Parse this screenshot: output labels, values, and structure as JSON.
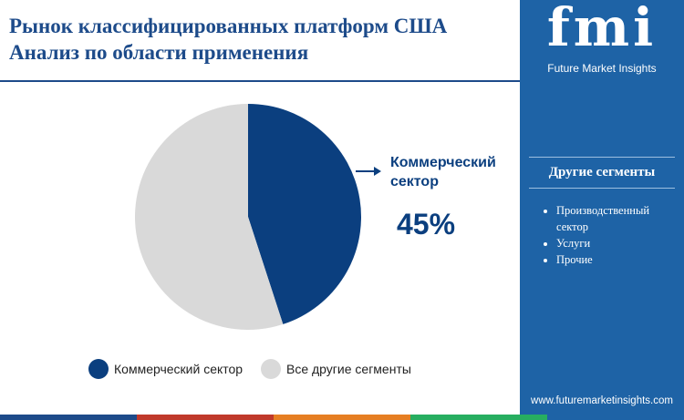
{
  "chart_data": {
    "type": "pie",
    "title": "Рынок классифицированных платформ США",
    "subtitle": "Анализ по области применения",
    "categories": [
      "Коммерческий сектор",
      "Все другие сегменты"
    ],
    "values": [
      45,
      55
    ],
    "value_labels": [
      "45%",
      null
    ],
    "colors": [
      "#0b3f7f",
      "#d9d9d9"
    ]
  },
  "sidebar": {
    "heading": "Другие сегменты",
    "items": [
      "Производственный сектор",
      "Услуги",
      "Прочие"
    ]
  },
  "brand": {
    "logo": "fmi",
    "name": "Future Market Insights",
    "url": "www.futuremarketinsights.com"
  }
}
